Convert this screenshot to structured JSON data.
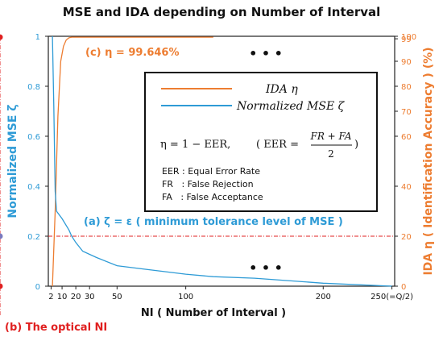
{
  "chart_data": {
    "type": "line",
    "title": "MSE and IDA depending on Number of Interval",
    "xlabel": "NI ( Number of Interval )",
    "ylabel_left": "Normalized MSE ζ",
    "ylabel_right": "IDA η ( Identification Accuracy ) (%)",
    "x_ticks": [
      "2",
      "10",
      "20",
      "30",
      "50",
      "100",
      "200",
      "250(=Q/2)"
    ],
    "x_tick_values": [
      2,
      10,
      20,
      30,
      50,
      100,
      200,
      250
    ],
    "y_left_ticks": [
      "0",
      "0.2",
      "0.4",
      "0.6",
      "0.8",
      "1"
    ],
    "y_left_tick_values": [
      0,
      0.2,
      0.4,
      0.6,
      0.8,
      1
    ],
    "y_right_ticks": [
      "0",
      "20",
      "40",
      "60",
      "70",
      "80",
      "90",
      "99",
      "100"
    ],
    "y_right_tick_values": [
      0,
      20,
      40,
      60,
      70,
      80,
      90,
      99,
      100
    ],
    "xlim": [
      0,
      252
    ],
    "ylim_left": [
      0,
      1
    ],
    "ylim_right": [
      0,
      100
    ],
    "legend_placement": "upper-right (inside plot)",
    "series": [
      {
        "name": "IDA η",
        "axis": "right",
        "color": "#ed7d31",
        "points": [
          [
            3,
            0
          ],
          [
            5,
            30
          ],
          [
            7,
            68
          ],
          [
            9,
            90
          ],
          [
            11,
            96
          ],
          [
            13,
            98.5
          ],
          [
            15,
            99.4
          ],
          [
            17,
            99.646
          ],
          [
            20,
            99.65
          ],
          [
            30,
            99.65
          ],
          [
            60,
            99.65
          ],
          [
            100,
            99.65
          ],
          [
            120,
            99.65
          ]
        ]
      },
      {
        "name": "Normalized MSE ζ",
        "axis": "left",
        "color": "#2e9bd6",
        "points": [
          [
            3,
            1.0
          ],
          [
            4,
            0.72
          ],
          [
            5,
            0.38
          ],
          [
            6,
            0.3
          ],
          [
            10,
            0.27
          ],
          [
            15,
            0.225
          ],
          [
            17,
            0.2
          ],
          [
            20,
            0.175
          ],
          [
            25,
            0.14
          ],
          [
            35,
            0.115
          ],
          [
            50,
            0.082
          ],
          [
            70,
            0.068
          ],
          [
            100,
            0.048
          ],
          [
            120,
            0.038
          ],
          [
            150,
            0.032
          ],
          [
            200,
            0.012
          ],
          [
            250,
            0.0
          ]
        ]
      }
    ]
  },
  "annotations": {
    "eta_point": "(c) η = 99.646%",
    "zeta_point": "(a) ζ = ε ( minimum tolerance level of MSE )",
    "optimal_ni": "(b) The optical NI",
    "optimal_ni_value": 17,
    "eta_value": 99.646,
    "zeta_value": 0.2,
    "ellipsis_top": "• • •",
    "ellipsis_bottom": "• • •"
  },
  "legend": {
    "ida_label": "IDA η",
    "mse_label": "Normalized MSE ζ",
    "formula_lhs": "η = 1 − EER,",
    "formula_eer": "( EER =",
    "formula_num": "FR + FA",
    "formula_den": "2",
    "formula_close": ")",
    "defs": [
      "EER : Equal Error Rate",
      "FR   : False Rejection",
      "FA   : False Acceptance"
    ]
  },
  "colors": {
    "ida": "#ed7d31",
    "mse": "#2e9bd6",
    "highlight": "#e02020",
    "axis": "#222222"
  }
}
